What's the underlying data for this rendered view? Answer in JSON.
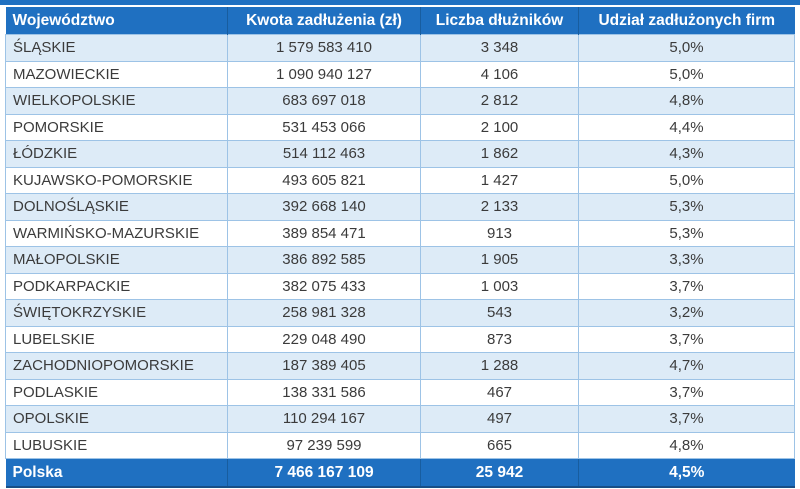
{
  "chart_data": {
    "type": "table",
    "columns": [
      "Województwo",
      "Kwota zadłużenia (zł)",
      "Liczba dłużników",
      "Udział zadłużonych firm"
    ],
    "rows": [
      [
        "ŚLĄSKIE",
        "1 579 583 410",
        "3 348",
        "5,0%"
      ],
      [
        "MAZOWIECKIE",
        "1 090 940 127",
        "4 106",
        "5,0%"
      ],
      [
        "WIELKOPOLSKIE",
        "683 697 018",
        "2 812",
        "4,8%"
      ],
      [
        "POMORSKIE",
        "531 453 066",
        "2 100",
        "4,4%"
      ],
      [
        "ŁÓDZKIE",
        "514 112 463",
        "1 862",
        "4,3%"
      ],
      [
        "KUJAWSKO-POMORSKIE",
        "493 605 821",
        "1 427",
        "5,0%"
      ],
      [
        "DOLNOŚLĄSKIE",
        "392 668 140",
        "2 133",
        "5,3%"
      ],
      [
        "WARMIŃSKO-MAZURSKIE",
        "389 854 471",
        "913",
        "5,3%"
      ],
      [
        "MAŁOPOLSKIE",
        "386 892 585",
        "1 905",
        "3,3%"
      ],
      [
        "PODKARPACKIE",
        "382 075 433",
        "1 003",
        "3,7%"
      ],
      [
        "ŚWIĘTOKRZYSKIE",
        "258 981 328",
        "543",
        "3,2%"
      ],
      [
        "LUBELSKIE",
        "229 048 490",
        "873",
        "3,7%"
      ],
      [
        "ZACHODNIOPOMORSKIE",
        "187 389 405",
        "1 288",
        "4,7%"
      ],
      [
        "PODLASKIE",
        "138 331 586",
        "467",
        "3,7%"
      ],
      [
        "OPOLSKIE",
        "110 294 167",
        "497",
        "3,7%"
      ],
      [
        "LUBUSKIE",
        "97 239 599",
        "665",
        "4,8%"
      ]
    ],
    "footer": [
      "Polska",
      "7 466 167 109",
      "25 942",
      "4,5%"
    ]
  },
  "colors": {
    "header_bg": "#1f70c1",
    "header_divider": "#185d9f",
    "alt_row_bg": "#ddebf7",
    "row_border": "#9dc3e6",
    "text_dark": "#3b3b3b",
    "header_text": "#ffffff"
  }
}
